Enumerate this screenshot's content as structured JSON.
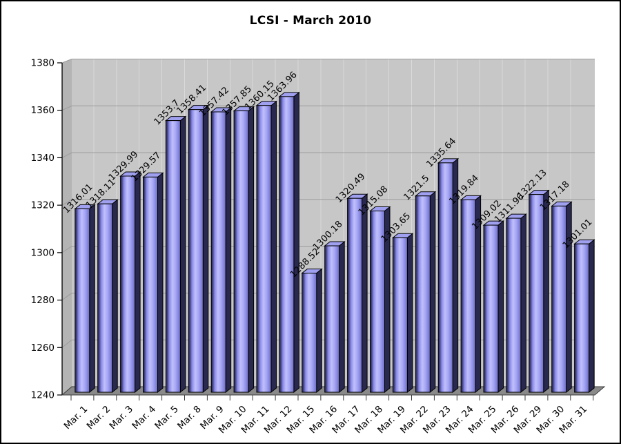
{
  "chart_data": {
    "type": "bar",
    "title": "LCSI - March 2010",
    "xlabel": "",
    "ylabel": "",
    "categories": [
      "Mar. 1",
      "Mar. 2",
      "Mar. 3",
      "Mar. 4",
      "Mar. 5",
      "Mar. 8",
      "Mar. 9",
      "Mar. 10",
      "Mar. 11",
      "Mar. 12",
      "Mar. 15",
      "Mar. 16",
      "Mar. 17",
      "Mar. 18",
      "Mar. 19",
      "Mar. 22",
      "Mar. 23",
      "Mar. 24",
      "Mar. 25",
      "Mar. 26",
      "Mar. 29",
      "Mar. 30",
      "Mar. 31"
    ],
    "values": [
      1316.01,
      1318.11,
      1329.99,
      1329.57,
      1353.7,
      1358.41,
      1357.42,
      1357.85,
      1360.15,
      1363.96,
      1288.52,
      1300.18,
      1320.49,
      1315.08,
      1303.65,
      1321.5,
      1335.64,
      1319.84,
      1309.02,
      1311.96,
      1322.13,
      1317.18,
      1301.01
    ],
    "ylim": [
      1240,
      1380
    ],
    "ytick_step": 20,
    "yticks": [
      1240,
      1260,
      1280,
      1300,
      1320,
      1340,
      1360,
      1380
    ],
    "grid": true,
    "legend": "none",
    "style": "3d-column",
    "data_labels_rotation": -45,
    "x_labels_rotation": -45,
    "colors": {
      "bar_face": "#9a9af2",
      "bar_face_light": "#c0c0fb",
      "bar_face_dark": "#2f2f5c",
      "bar_side": "#29294f",
      "bar_cap": "#a0a0f0",
      "outline": "#000000",
      "back_wall": "#c7c7c7",
      "left_wall": "#b4b4b4",
      "floor": "#8a8a8a",
      "gridline": "#9b9b9b",
      "axis": "#000000",
      "text": "#000000",
      "background": "#ffffff"
    }
  }
}
